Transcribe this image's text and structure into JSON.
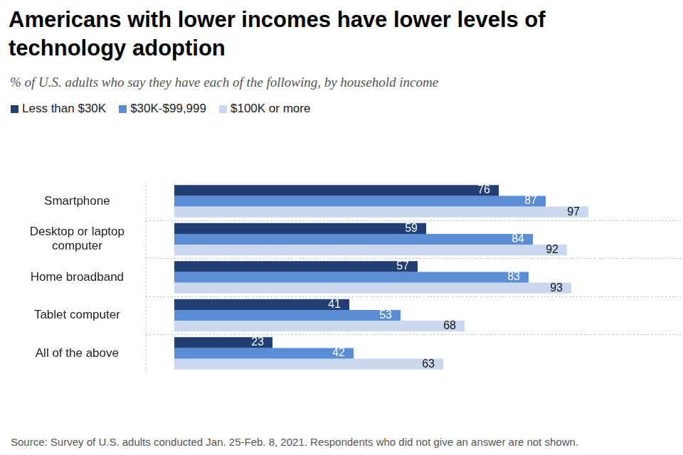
{
  "chart_data": {
    "type": "bar",
    "orientation": "horizontal",
    "title": "Americans with lower incomes have lower levels of technology adoption",
    "subtitle": "% of U.S. adults who say they have each of the following, by household income",
    "categories": [
      "Smartphone",
      "Desktop or laptop computer",
      "Home broadband",
      "Tablet computer",
      "All of the above"
    ],
    "series": [
      {
        "name": "Less than $30K",
        "color": "#213f73",
        "values": [
          76,
          59,
          57,
          41,
          23
        ]
      },
      {
        "name": "$30K-$99,999",
        "color": "#5b8dd6",
        "values": [
          87,
          84,
          83,
          53,
          42
        ]
      },
      {
        "name": "$100K or more",
        "color": "#c9d7ef",
        "values": [
          97,
          92,
          93,
          68,
          63
        ]
      }
    ],
    "xlim": [
      0,
      100
    ],
    "grid": false,
    "legend": "top-left",
    "data_labels": true,
    "tick_labels": "y",
    "source": "Source: Survey of U.S. adults conducted Jan. 25-Feb. 8, 2021. Respondents who did not give an answer are not shown."
  }
}
